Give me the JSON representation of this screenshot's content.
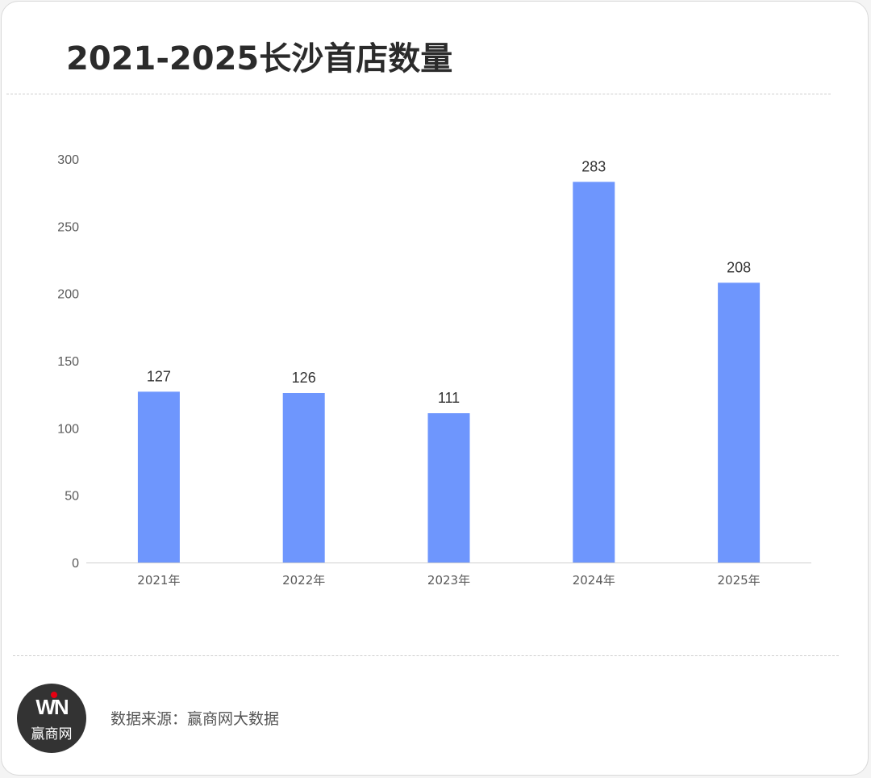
{
  "title": "2021-2025长沙首店数量",
  "source": "数据来源：赢商网大数据",
  "logo": {
    "mark": "WN",
    "name": "赢商网",
    "bg_color": "#333333",
    "dot_color": "#e60012"
  },
  "colors": {
    "bar": "#6e96fd",
    "axis": "#d0d0d0",
    "tick_text": "#595959",
    "label_text": "#333333"
  },
  "chart_data": {
    "type": "bar",
    "title": "2021-2025长沙首店数量",
    "xlabel": "",
    "ylabel": "",
    "categories": [
      "2021年",
      "2022年",
      "2023年",
      "2024年",
      "2025年"
    ],
    "values": [
      127,
      126,
      111,
      283,
      208
    ],
    "ylim": [
      0,
      300
    ],
    "yticks": [
      0,
      50,
      100,
      150,
      200,
      250,
      300
    ],
    "grid": false,
    "data_labels": true,
    "legend": "none"
  }
}
